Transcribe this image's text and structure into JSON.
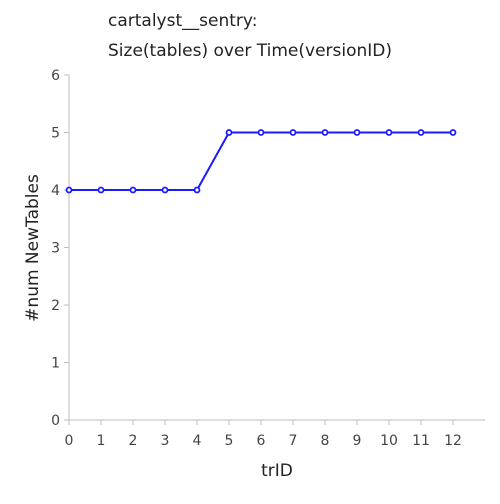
{
  "chart_data": {
    "type": "line",
    "title": [
      "cartalyst__sentry:",
      "Size(tables) over Time(versionID)"
    ],
    "xlabel": "trID",
    "ylabel": "#num NewTables",
    "x": [
      0,
      1,
      2,
      3,
      4,
      5,
      6,
      7,
      8,
      9,
      10,
      11,
      12
    ],
    "series": [
      {
        "values": [
          4,
          4,
          4,
          4,
          4,
          5,
          5,
          5,
          5,
          5,
          5,
          5,
          5
        ],
        "color": "#1a1aff"
      }
    ],
    "xlim": [
      0,
      13
    ],
    "ylim": [
      0,
      6
    ],
    "xticks": [
      0,
      1,
      2,
      3,
      4,
      5,
      6,
      7,
      8,
      9,
      10,
      11,
      12
    ],
    "yticks": [
      0,
      1,
      2,
      3,
      4,
      5,
      6
    ],
    "grid": false,
    "legend": "none"
  }
}
